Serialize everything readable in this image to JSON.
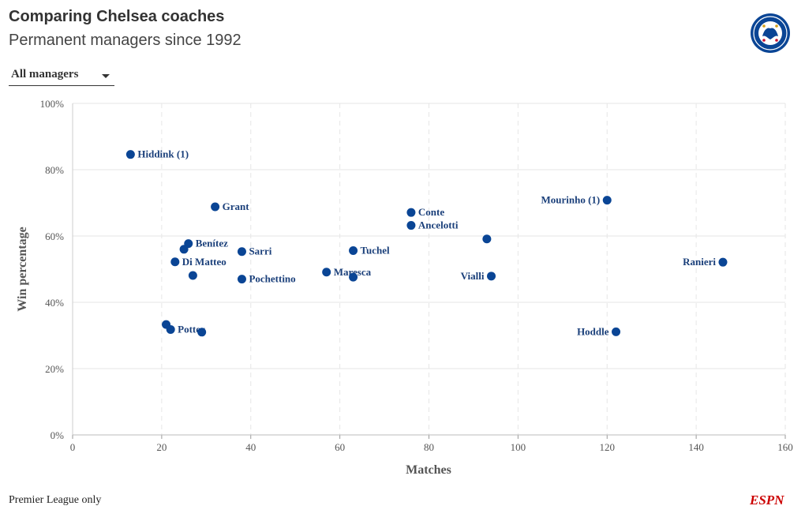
{
  "title": "Comparing Chelsea coaches",
  "subtitle": "Permanent managers since 1992",
  "dropdown": {
    "selected": "All managers"
  },
  "footer": "Premier League only",
  "logos": {
    "crest": "chelsea-crest",
    "espn": "ESPN"
  },
  "colors": {
    "point": "#0a4595",
    "label": "#1a3f7a",
    "grid": "#e6e6e6",
    "text": "#555555"
  },
  "chart_data": {
    "type": "scatter",
    "xlabel": "Matches",
    "ylabel": "Win percentage",
    "xlim": [
      0,
      160
    ],
    "ylim": [
      0,
      100
    ],
    "x_ticks": [
      0,
      20,
      40,
      60,
      80,
      100,
      120,
      140,
      160
    ],
    "y_ticks": [
      0,
      20,
      40,
      60,
      80,
      100
    ],
    "y_tick_labels": [
      "0%",
      "20%",
      "40%",
      "60%",
      "80%",
      "100%"
    ],
    "grid": true,
    "points": [
      {
        "x": 13,
        "y": 84.6,
        "label": "Hiddink (1)",
        "anchor": "right"
      },
      {
        "x": 32,
        "y": 68.8,
        "label": "Grant",
        "anchor": "right"
      },
      {
        "x": 26,
        "y": 57.7,
        "label": "Benítez",
        "anchor": "right"
      },
      {
        "x": 25,
        "y": 56.0,
        "label": "",
        "anchor": ""
      },
      {
        "x": 38,
        "y": 55.3,
        "label": "Sarri",
        "anchor": "right"
      },
      {
        "x": 23,
        "y": 52.2,
        "label": "Di Matteo",
        "anchor": "right"
      },
      {
        "x": 27,
        "y": 48.1,
        "label": "",
        "anchor": ""
      },
      {
        "x": 38,
        "y": 47.0,
        "label": "Pochettino",
        "anchor": "right"
      },
      {
        "x": 21,
        "y": 33.3,
        "label": "",
        "anchor": ""
      },
      {
        "x": 22,
        "y": 31.8,
        "label": "Potter",
        "anchor": "right"
      },
      {
        "x": 29,
        "y": 31.0,
        "label": "",
        "anchor": ""
      },
      {
        "x": 57,
        "y": 49.1,
        "label": "Maresca",
        "anchor": "right"
      },
      {
        "x": 63,
        "y": 47.6,
        "label": "",
        "anchor": ""
      },
      {
        "x": 63,
        "y": 55.6,
        "label": "Tuchel",
        "anchor": "right"
      },
      {
        "x": 76,
        "y": 67.1,
        "label": "Conte",
        "anchor": "right"
      },
      {
        "x": 76,
        "y": 63.2,
        "label": "Ancelotti",
        "anchor": "right"
      },
      {
        "x": 93,
        "y": 59.1,
        "label": "",
        "anchor": ""
      },
      {
        "x": 94,
        "y": 47.9,
        "label": "Vialli",
        "anchor": "left"
      },
      {
        "x": 120,
        "y": 70.8,
        "label": "Mourinho (1)",
        "anchor": "left"
      },
      {
        "x": 146,
        "y": 52.1,
        "label": "Ranieri",
        "anchor": "left"
      },
      {
        "x": 122,
        "y": 31.1,
        "label": "Hoddle",
        "anchor": "left"
      }
    ]
  }
}
